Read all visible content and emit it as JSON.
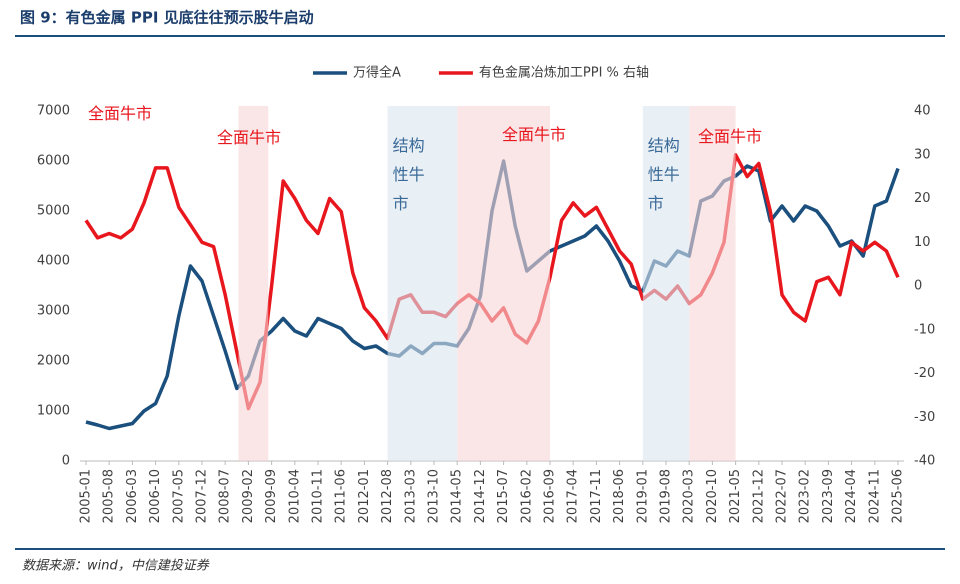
{
  "header": {
    "title": "图 9：有色金属 PPI 见底往往预示股牛启动"
  },
  "chart_data": {
    "type": "line",
    "categories": [
      "2005-01",
      null,
      "2005-08",
      null,
      "2006-03",
      null,
      "2006-10",
      null,
      "2007-05",
      null,
      "2007-12",
      null,
      "2008-07",
      null,
      "2009-02",
      null,
      "2009-09",
      null,
      "2010-04",
      null,
      "2010-11",
      null,
      "2011-06",
      null,
      "2012-01",
      null,
      "2012-08",
      null,
      "2013-03",
      null,
      "2013-10",
      null,
      "2014-05",
      null,
      "2014-12",
      null,
      "2015-07",
      null,
      "2016-02",
      null,
      "2016-09",
      null,
      "2017-04",
      null,
      "2017-11",
      null,
      "2018-06",
      null,
      "2019-01",
      null,
      "2019-08",
      null,
      "2020-03",
      null,
      "2020-10",
      null,
      "2021-05",
      null,
      "2021-12",
      null,
      "2022-07",
      null,
      "2023-02",
      null,
      "2023-09",
      null,
      "2024-04",
      null,
      "2024-11",
      null,
      "2025-06"
    ],
    "series": [
      {
        "name": "万得全A",
        "color": "#1b4f7d",
        "values": [
          780,
          720,
          650,
          700,
          750,
          1000,
          1150,
          1700,
          2900,
          3900,
          3600,
          2900,
          2200,
          1450,
          1700,
          2400,
          2600,
          2850,
          2600,
          2500,
          2850,
          2750,
          2650,
          2400,
          2250,
          2300,
          2150,
          2100,
          2300,
          2150,
          2350,
          2350,
          2300,
          2650,
          3300,
          5000,
          6000,
          4700,
          3800,
          4000,
          4200,
          4300,
          4400,
          4500,
          4700,
          4400,
          4000,
          3500,
          3400,
          4000,
          3900,
          4200,
          4100,
          5200,
          5300,
          5600,
          5700,
          5900,
          5800,
          4800,
          5100,
          4800,
          5100,
          5000,
          4700,
          4300,
          4400,
          4100,
          5100,
          5200,
          5850
        ]
      },
      {
        "name": "有色金属冶炼加工PPI % 右轴",
        "color": "#e8161d",
        "axis": "y2",
        "values": [
          15,
          11,
          12,
          11,
          13,
          19,
          27,
          27,
          18,
          14,
          10,
          9,
          -2,
          -15,
          -28,
          -22,
          0,
          24,
          20,
          15,
          12,
          20,
          17,
          3,
          -5,
          -8,
          -12,
          -3,
          -2,
          -6,
          -6,
          -7,
          -4,
          -2,
          -4,
          -8,
          -5,
          -11,
          -13,
          -8,
          2,
          15,
          19,
          16,
          18,
          13,
          8,
          5,
          -3,
          -1,
          -3,
          0,
          -4,
          -2,
          3,
          10,
          30,
          25,
          28,
          17,
          -2,
          -6,
          -8,
          1,
          2,
          -2,
          10,
          8,
          10,
          8,
          2
        ]
      }
    ],
    "ylim": [
      0,
      7000
    ],
    "yticks": [
      0,
      1000,
      2000,
      3000,
      4000,
      5000,
      6000,
      7000
    ],
    "y2lim": [
      -40,
      40
    ],
    "y2ticks": [
      -40,
      -30,
      -20,
      -10,
      0,
      10,
      20,
      30,
      40
    ],
    "legend": "top",
    "annotations": [
      "全面牛市"
    ],
    "regions": [
      {
        "label": "全面牛市",
        "start": "2008-11",
        "end": "2009-08",
        "color": "#f6d6d6"
      },
      {
        "label": "结构性牛市",
        "start": "2012-08",
        "end": "2014-05",
        "color": "#d9e4ef"
      },
      {
        "label": "全面牛市",
        "start": "2014-05",
        "end": "2016-09",
        "color": "#f6d6d6"
      },
      {
        "label": "结构性牛市",
        "start": "2019-01",
        "end": "2020-03",
        "color": "#d9e4ef"
      },
      {
        "label": "全面牛市",
        "start": "2020-03",
        "end": "2021-05",
        "color": "#f6d6d6"
      }
    ]
  },
  "footer": {
    "source": "数据来源：wind，中信建投证券"
  }
}
